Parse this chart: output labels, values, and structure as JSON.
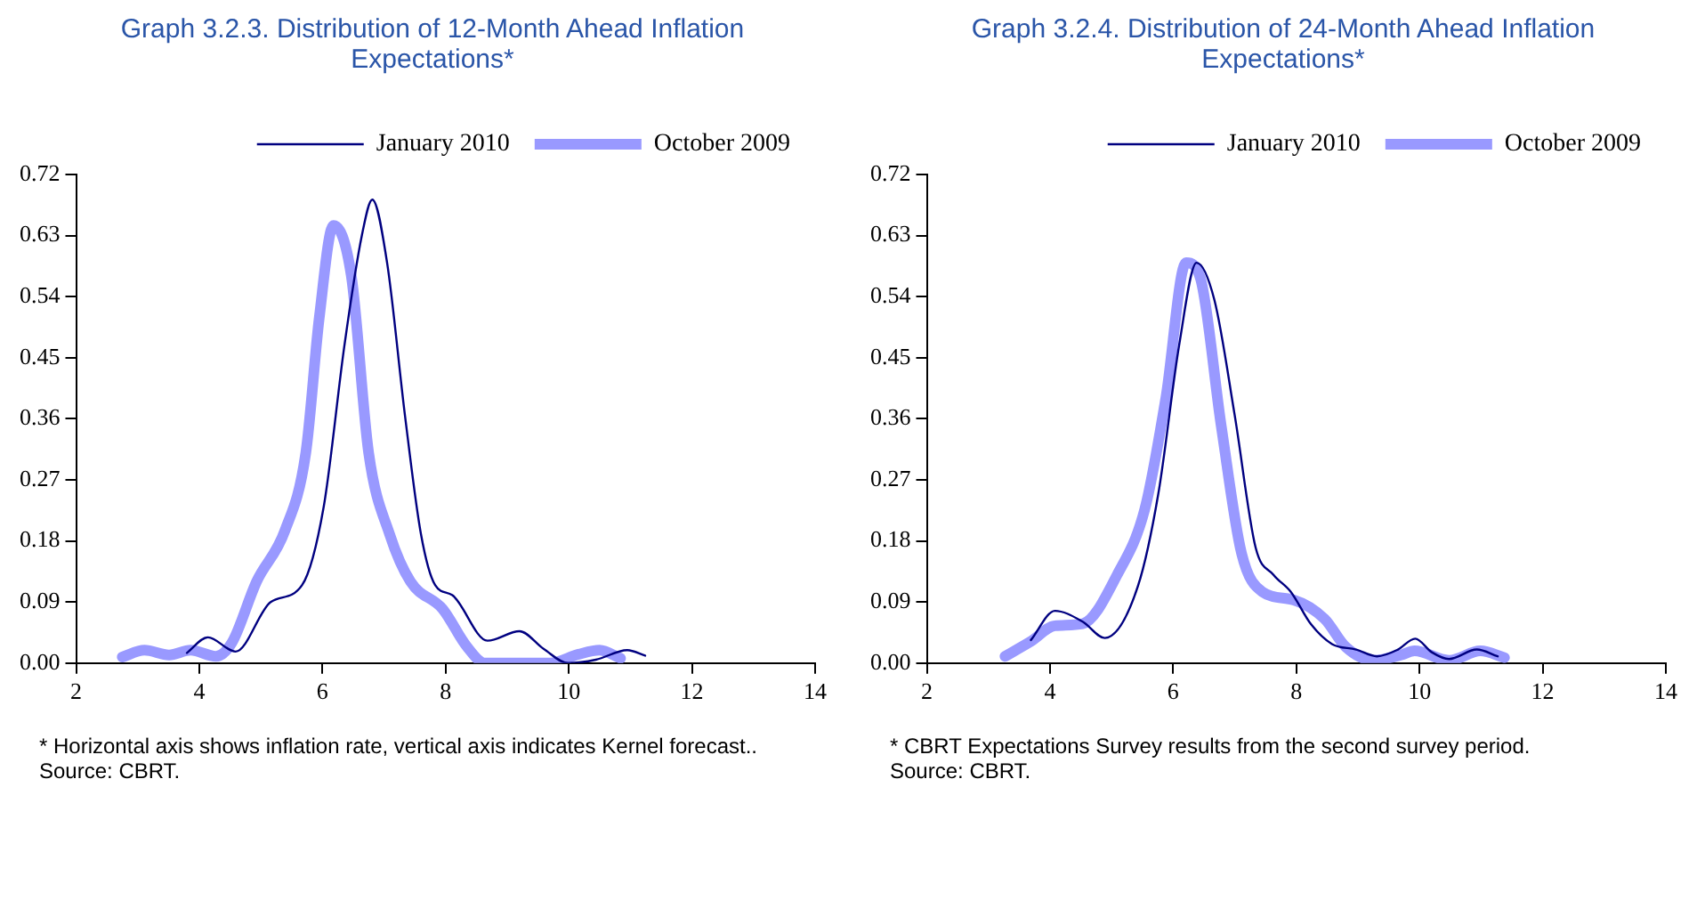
{
  "chart_data": [
    {
      "type": "line",
      "title": "Graph 3.2.3. Distribution of 12-Month Ahead Inflation Expectations*",
      "xlim": [
        2,
        14
      ],
      "xticks": [
        2,
        4,
        6,
        8,
        10,
        12,
        14
      ],
      "ylim": [
        0,
        0.72
      ],
      "yticks": [
        {
          "value": 0,
          "label": "0.00"
        },
        {
          "value": 0.09,
          "label": "0.09"
        },
        {
          "value": 0.18,
          "label": "0.18"
        },
        {
          "value": 0.27,
          "label": "0.27"
        },
        {
          "value": 0.36,
          "label": "0.36"
        },
        {
          "value": 0.45,
          "label": "0.45"
        },
        {
          "value": 0.54,
          "label": "0.54"
        },
        {
          "value": 0.63,
          "label": "0.63"
        },
        {
          "value": 0.72,
          "label": "0.72"
        }
      ],
      "grid": false,
      "legend": "top right",
      "marker": "none",
      "line_style": "solid",
      "series": [
        {
          "name": "October 2009",
          "color": "#9999ff",
          "x": [
            2.75,
            3.11,
            3.51,
            3.86,
            4.27,
            4.53,
            4.93,
            5.39,
            5.73,
            5.95,
            6.18,
            6.47,
            6.75,
            7.09,
            7.43,
            7.95,
            8.34,
            8.64,
            9.7,
            10.16,
            10.5,
            10.84
          ],
          "values": [
            0.009,
            0.019,
            0.012,
            0.019,
            0.01,
            0.03,
            0.12,
            0.195,
            0.31,
            0.51,
            0.645,
            0.57,
            0.31,
            0.19,
            0.12,
            0.08,
            0.025,
            0,
            0,
            0.013,
            0.019,
            0.007
          ]
        },
        {
          "name": "January 2010",
          "color": "#000080",
          "x": [
            3.8,
            4.14,
            4.59,
            5.16,
            5.67,
            6.02,
            6.36,
            6.64,
            6.81,
            7.05,
            7.34,
            7.6,
            7.83,
            8.11,
            8.68,
            9.2,
            9.59,
            9.99,
            10.44,
            10.95,
            11.24
          ],
          "values": [
            0.015,
            0.038,
            0.017,
            0.09,
            0.115,
            0.23,
            0.47,
            0.63,
            0.683,
            0.59,
            0.365,
            0.19,
            0.115,
            0.1,
            0.033,
            0.047,
            0.021,
            0,
            0.005,
            0.019,
            0.011
          ]
        }
      ],
      "annotations": [
        "* Horizontal axis shows inflation rate, vertical axis indicates Kernel forecast..",
        "Source: CBRT."
      ]
    },
    {
      "type": "line",
      "title": "Graph 3.2.4. Distribution of 24-Month Ahead Inflation Expectations*",
      "xlim": [
        2,
        14
      ],
      "xticks": [
        2,
        4,
        6,
        8,
        10,
        12,
        14
      ],
      "ylim": [
        0,
        0.72
      ],
      "yticks": [
        {
          "value": 0,
          "label": "0.00"
        },
        {
          "value": 0.09,
          "label": "0.09"
        },
        {
          "value": 0.18,
          "label": "0.18"
        },
        {
          "value": 0.27,
          "label": "0.27"
        },
        {
          "value": 0.36,
          "label": "0.36"
        },
        {
          "value": 0.45,
          "label": "0.45"
        },
        {
          "value": 0.54,
          "label": "0.54"
        },
        {
          "value": 0.63,
          "label": "0.63"
        },
        {
          "value": 0.72,
          "label": "0.72"
        }
      ],
      "grid": false,
      "legend": "top right",
      "marker": "none",
      "line_style": "solid",
      "series": [
        {
          "name": "October 2009",
          "color": "#9999ff",
          "x": [
            3.27,
            3.69,
            4.08,
            4.53,
            5.09,
            5.54,
            5.88,
            6.21,
            6.44,
            6.78,
            7.11,
            7.45,
            7.96,
            8.46,
            8.8,
            9.25,
            9.7,
            9.92,
            10.48,
            10.99,
            11.38
          ],
          "values": [
            0.01,
            0.032,
            0.055,
            0.058,
            0.13,
            0.227,
            0.39,
            0.59,
            0.568,
            0.35,
            0.162,
            0.105,
            0.093,
            0.065,
            0.024,
            0.004,
            0.012,
            0.018,
            0.004,
            0.018,
            0.008
          ]
        },
        {
          "name": "January 2010",
          "color": "#000080",
          "x": [
            3.69,
            4.08,
            4.53,
            4.89,
            5.43,
            5.76,
            6.1,
            6.38,
            6.67,
            7.0,
            7.34,
            7.63,
            7.91,
            8.24,
            8.58,
            8.97,
            9.31,
            9.65,
            9.93,
            10.2,
            10.48,
            10.93,
            11.27
          ],
          "values": [
            0.034,
            0.077,
            0.061,
            0.037,
            0.114,
            0.25,
            0.47,
            0.59,
            0.535,
            0.365,
            0.17,
            0.13,
            0.105,
            0.057,
            0.028,
            0.02,
            0.01,
            0.02,
            0.036,
            0.016,
            0.006,
            0.02,
            0.01
          ]
        }
      ],
      "annotations": [
        "* CBRT Expectations Survey results from the second survey period.",
        "Source: CBRT."
      ]
    }
  ]
}
